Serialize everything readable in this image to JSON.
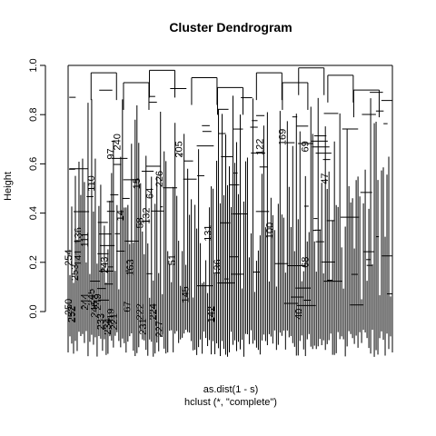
{
  "chart_data": {
    "type": "dendrogram",
    "title": "Cluster Dendrogram",
    "ylabel": "Height",
    "xlabel": "as.dist(1 - s)",
    "sublabel": "hclust (*, \"complete\")",
    "ylim": [
      0,
      1
    ],
    "yticks": [
      "0.0",
      "0.2",
      "0.4",
      "0.6",
      "0.8",
      "1.0"
    ],
    "root_height": 1.0,
    "upper_merges": [
      {
        "x": 0.75,
        "height": 0.99
      },
      {
        "x": 0.11,
        "height": 0.97
      },
      {
        "x": 0.29,
        "height": 0.98
      },
      {
        "x": 0.62,
        "height": 0.97
      },
      {
        "x": 0.84,
        "height": 0.96
      },
      {
        "x": 0.42,
        "height": 0.95
      },
      {
        "x": 0.21,
        "height": 0.93
      },
      {
        "x": 0.7,
        "height": 0.93
      },
      {
        "x": 0.5,
        "height": 0.91
      },
      {
        "x": 0.92,
        "height": 0.9
      }
    ],
    "node_labels": [
      {
        "label": "254",
        "x": 0.0,
        "height": 0.26
      },
      {
        "label": "250",
        "x": 0.0,
        "height": 0.06
      },
      {
        "label": "252",
        "x": 0.01,
        "height": 0.03
      },
      {
        "label": "253",
        "x": 0.02,
        "height": 0.2
      },
      {
        "label": "141",
        "x": 0.03,
        "height": 0.26
      },
      {
        "label": "136",
        "x": 0.03,
        "height": 0.35
      },
      {
        "label": "111",
        "x": 0.05,
        "height": 0.33
      },
      {
        "label": "110",
        "x": 0.07,
        "height": 0.56
      },
      {
        "label": "244",
        "x": 0.05,
        "height": 0.08
      },
      {
        "label": "245",
        "x": 0.07,
        "height": 0.1
      },
      {
        "label": "246",
        "x": 0.08,
        "height": 0.05
      },
      {
        "label": "249",
        "x": 0.09,
        "height": 0.08
      },
      {
        "label": "233",
        "x": 0.1,
        "height": 0.0
      },
      {
        "label": "243",
        "x": 0.11,
        "height": 0.23
      },
      {
        "label": "97",
        "x": 0.13,
        "height": 0.67
      },
      {
        "label": "240",
        "x": 0.15,
        "height": 0.73
      },
      {
        "label": "14",
        "x": 0.16,
        "height": 0.42
      },
      {
        "label": "219",
        "x": 0.13,
        "height": 0.02
      },
      {
        "label": "234",
        "x": 0.12,
        "height": -0.02
      },
      {
        "label": "221",
        "x": 0.14,
        "height": 0.0
      },
      {
        "label": "67",
        "x": 0.18,
        "height": 0.05
      },
      {
        "label": "163",
        "x": 0.19,
        "height": 0.22
      },
      {
        "label": "15",
        "x": 0.21,
        "height": 0.55
      },
      {
        "label": "58",
        "x": 0.22,
        "height": 0.39
      },
      {
        "label": "132",
        "x": 0.24,
        "height": 0.43
      },
      {
        "label": "64",
        "x": 0.25,
        "height": 0.51
      },
      {
        "label": "222",
        "x": 0.22,
        "height": 0.04
      },
      {
        "label": "226",
        "x": 0.28,
        "height": 0.58
      },
      {
        "label": "205",
        "x": 0.34,
        "height": 0.7
      },
      {
        "label": "51",
        "x": 0.32,
        "height": 0.24
      },
      {
        "label": "224",
        "x": 0.26,
        "height": 0.04
      },
      {
        "label": "231",
        "x": 0.23,
        "height": -0.02
      },
      {
        "label": "227",
        "x": 0.28,
        "height": -0.03
      },
      {
        "label": "145",
        "x": 0.36,
        "height": 0.11
      },
      {
        "label": "131",
        "x": 0.43,
        "height": 0.36
      },
      {
        "label": "142",
        "x": 0.44,
        "height": 0.03
      },
      {
        "label": "136",
        "x": 0.46,
        "height": 0.22
      },
      {
        "label": "122",
        "x": 0.59,
        "height": 0.71
      },
      {
        "label": "169",
        "x": 0.66,
        "height": 0.75
      },
      {
        "label": "100",
        "x": 0.62,
        "height": 0.37
      },
      {
        "label": "69",
        "x": 0.73,
        "height": 0.7
      },
      {
        "label": "47",
        "x": 0.79,
        "height": 0.57
      },
      {
        "label": "40",
        "x": 0.71,
        "height": 0.02
      },
      {
        "label": "68",
        "x": 0.73,
        "height": 0.23
      }
    ]
  }
}
